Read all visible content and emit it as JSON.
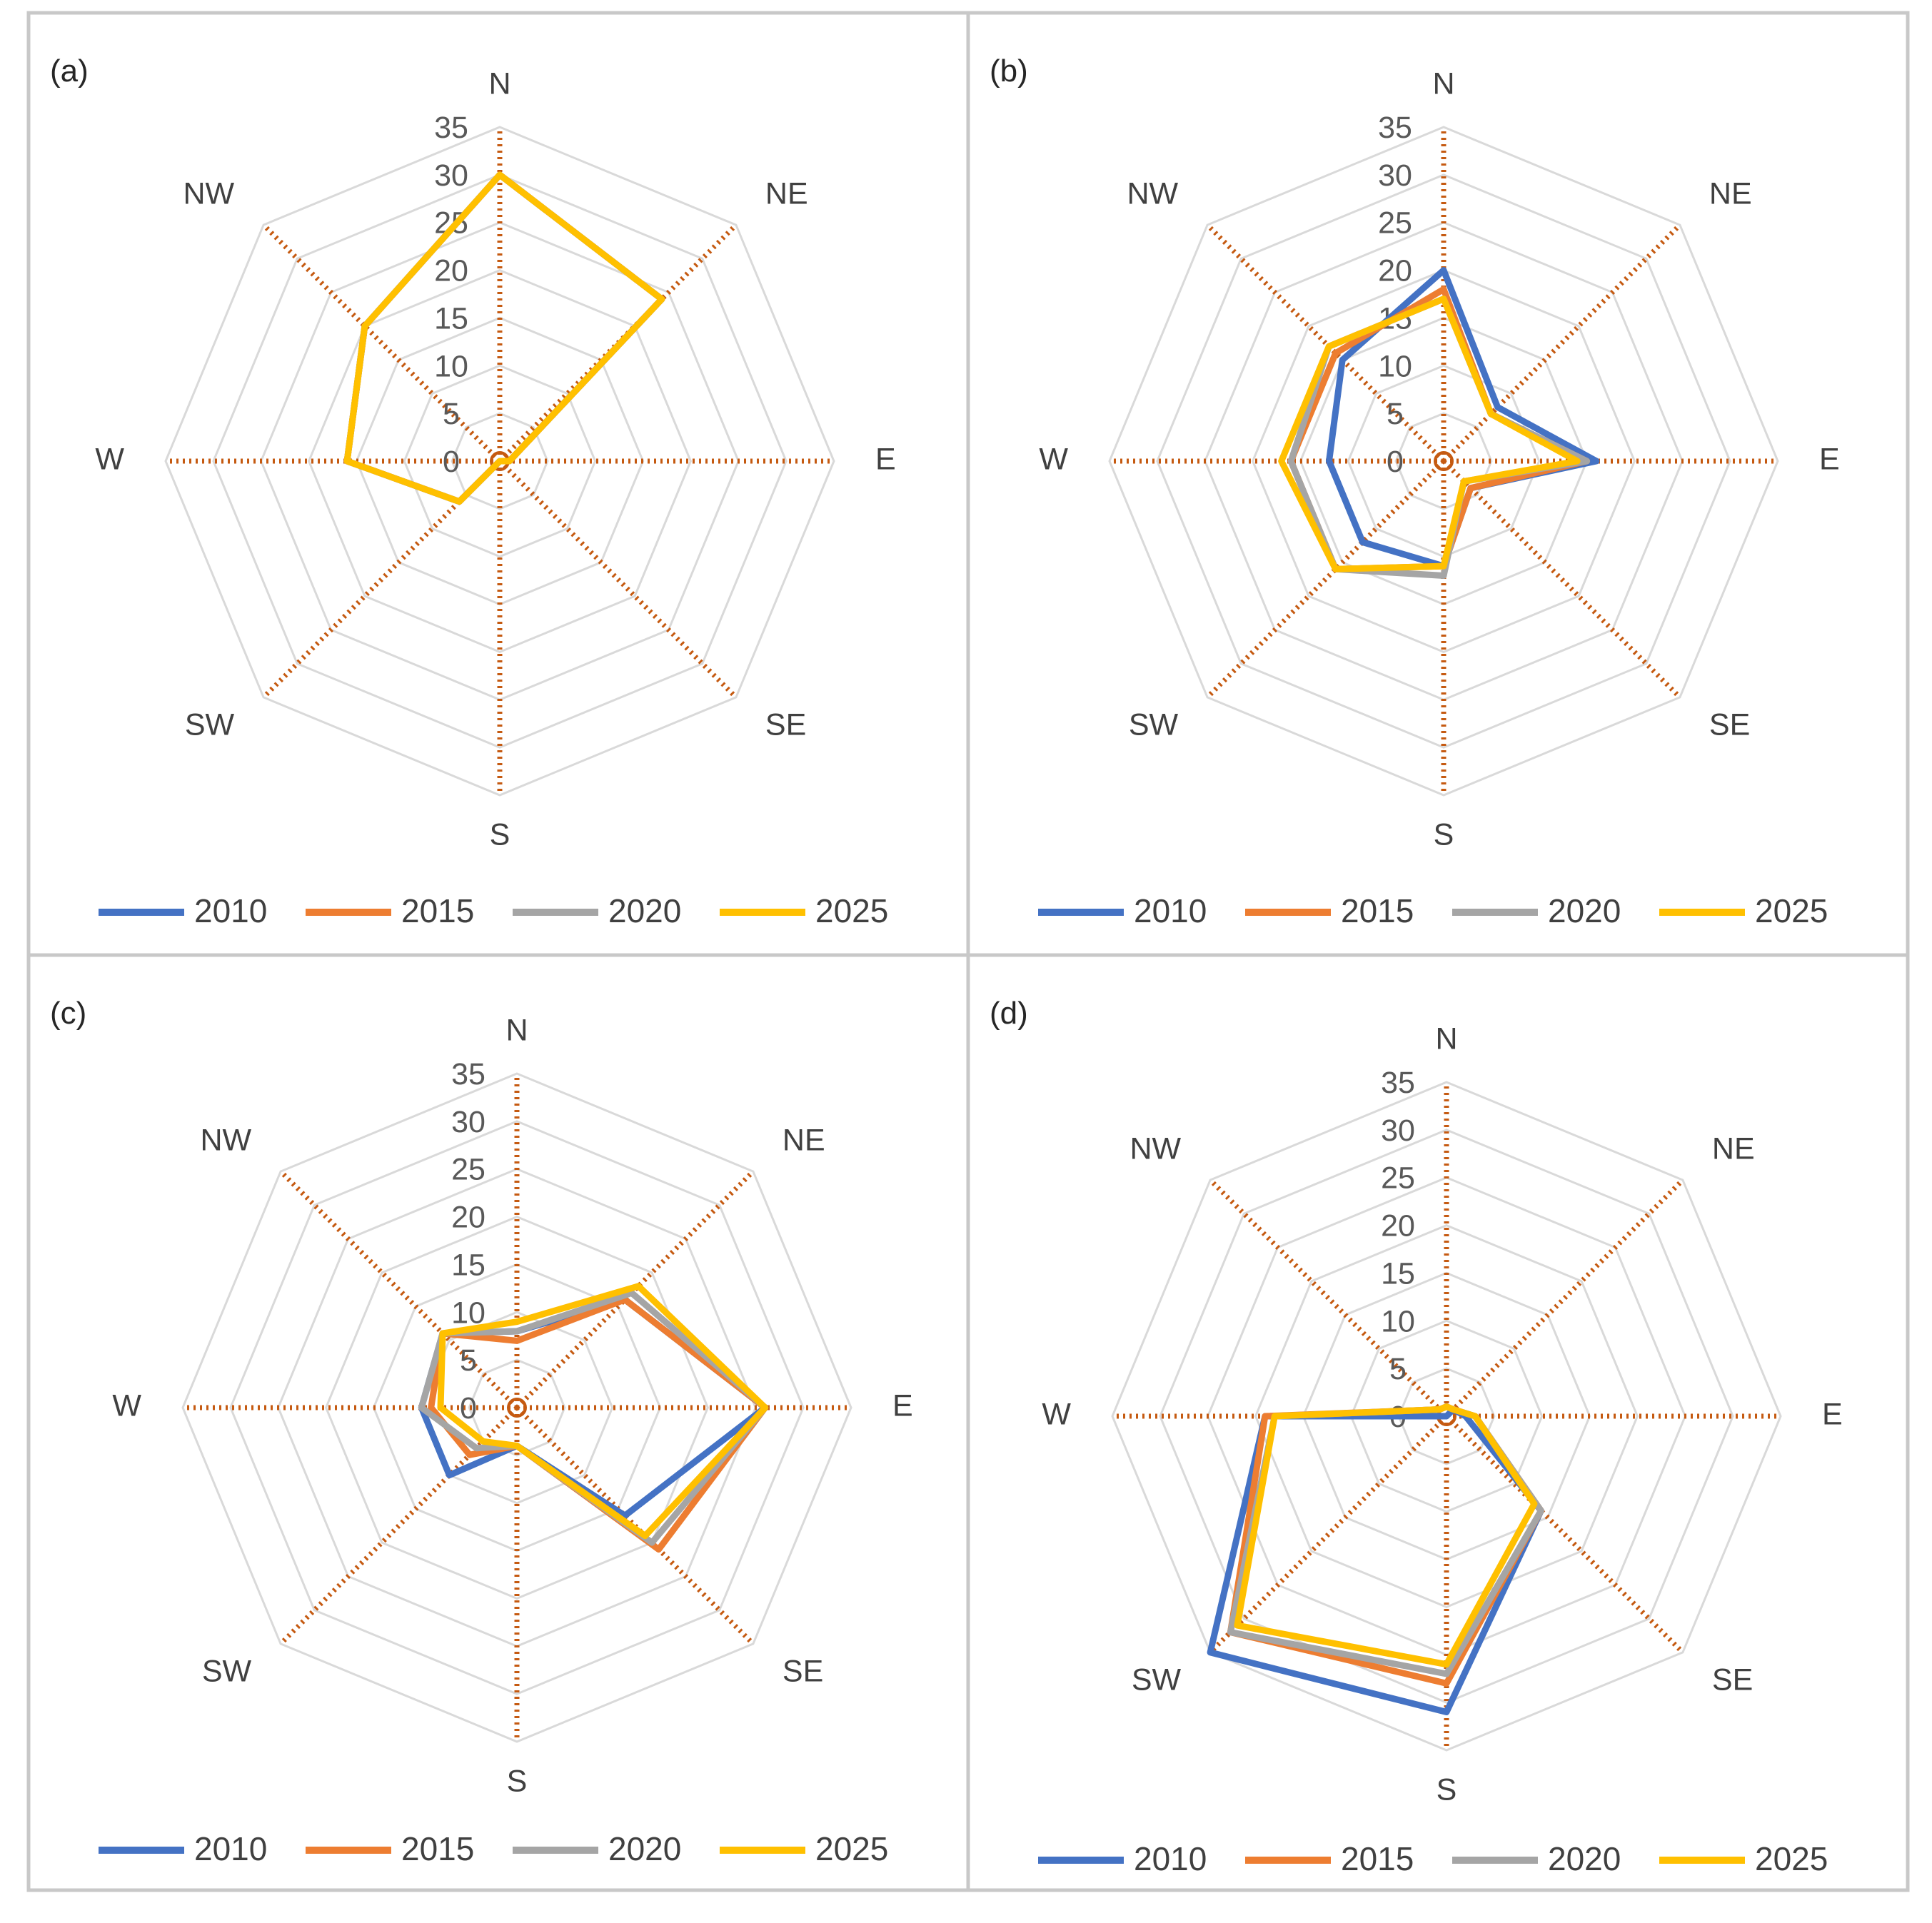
{
  "chart_data": [
    {
      "type": "radar",
      "panel_label": "(a)",
      "axes": [
        "N",
        "NE",
        "E",
        "SE",
        "S",
        "SW",
        "W",
        "NW"
      ],
      "ticks": [
        "0",
        "5",
        "10",
        "15",
        "20",
        "25",
        "30",
        "35"
      ],
      "rmax": 35,
      "series": [
        {
          "name": "2010",
          "color": "#4472c4",
          "values": [
            30,
            24,
            1,
            0,
            0,
            6,
            16,
            20
          ]
        },
        {
          "name": "2015",
          "color": "#ed7d31",
          "values": [
            30,
            24,
            1,
            0,
            0,
            6,
            16,
            20
          ]
        },
        {
          "name": "2020",
          "color": "#a5a5a5",
          "values": [
            30,
            24,
            1,
            0,
            0,
            6,
            16,
            20
          ]
        },
        {
          "name": "2025",
          "color": "#ffc000",
          "values": [
            30,
            24,
            1,
            0,
            0,
            6,
            16,
            20
          ]
        }
      ]
    },
    {
      "type": "radar",
      "panel_label": "(b)",
      "axes": [
        "N",
        "NE",
        "E",
        "SE",
        "S",
        "SW",
        "W",
        "NW"
      ],
      "ticks": [
        "0",
        "5",
        "10",
        "15",
        "20",
        "25",
        "30",
        "35"
      ],
      "rmax": 35,
      "series": [
        {
          "name": "2010",
          "color": "#4472c4",
          "values": [
            20,
            8,
            16,
            4,
            11,
            12,
            12,
            15
          ]
        },
        {
          "name": "2015",
          "color": "#ed7d31",
          "values": [
            18,
            7,
            15,
            4,
            11,
            16,
            16,
            16
          ]
        },
        {
          "name": "2020",
          "color": "#a5a5a5",
          "values": [
            17,
            7,
            15,
            3,
            12,
            16,
            16,
            17
          ]
        },
        {
          "name": "2025",
          "color": "#ffc000",
          "values": [
            17,
            7,
            14,
            3,
            11,
            16,
            17,
            17
          ]
        }
      ]
    },
    {
      "type": "radar",
      "panel_label": "(c)",
      "axes": [
        "N",
        "NE",
        "E",
        "SE",
        "S",
        "SW",
        "W",
        "NW"
      ],
      "ticks": [
        "0",
        "5",
        "10",
        "15",
        "20",
        "25",
        "30",
        "35"
      ],
      "rmax": 35,
      "series": [
        {
          "name": "2010",
          "color": "#4472c4",
          "values": [
            8,
            16,
            26,
            16,
            4,
            10,
            10,
            11
          ]
        },
        {
          "name": "2015",
          "color": "#ed7d31",
          "values": [
            7,
            16,
            26,
            21,
            4,
            7,
            9,
            11
          ]
        },
        {
          "name": "2020",
          "color": "#a5a5a5",
          "values": [
            8,
            17,
            26,
            20,
            4,
            6,
            10,
            11
          ]
        },
        {
          "name": "2025",
          "color": "#ffc000",
          "values": [
            9,
            18,
            26,
            19,
            4,
            5,
            8,
            11
          ]
        }
      ]
    },
    {
      "type": "radar",
      "panel_label": "(d)",
      "axes": [
        "N",
        "NE",
        "E",
        "SE",
        "S",
        "SW",
        "W",
        "NW"
      ],
      "ticks": [
        "0",
        "5",
        "10",
        "15",
        "20",
        "25",
        "30",
        "35"
      ],
      "rmax": 35,
      "series": [
        {
          "name": "2010",
          "color": "#4472c4",
          "values": [
            0,
            1,
            2,
            14,
            31,
            35,
            19,
            0
          ]
        },
        {
          "name": "2015",
          "color": "#ed7d31",
          "values": [
            1,
            1,
            3,
            14,
            28,
            32,
            19,
            1
          ]
        },
        {
          "name": "2020",
          "color": "#a5a5a5",
          "values": [
            1,
            1,
            3,
            14,
            27,
            32,
            18,
            1
          ]
        },
        {
          "name": "2025",
          "color": "#ffc000",
          "values": [
            1,
            1,
            3,
            13,
            26,
            31,
            18,
            1
          ]
        }
      ]
    }
  ]
}
